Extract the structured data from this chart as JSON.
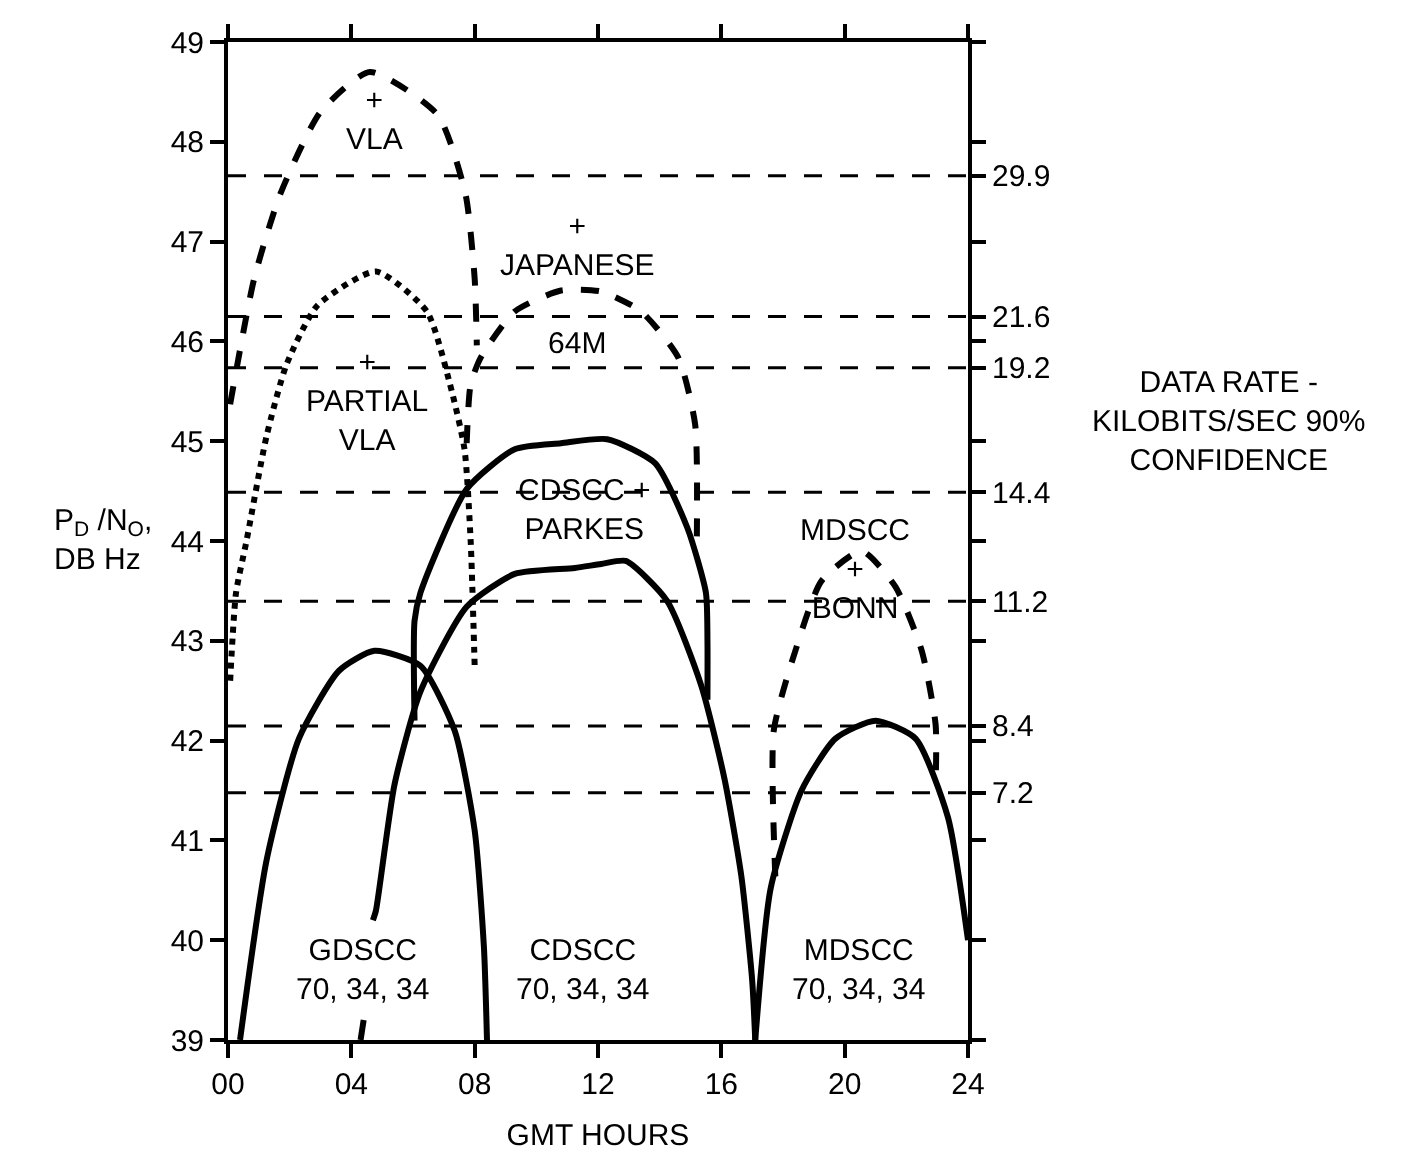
{
  "chart_data": {
    "type": "line",
    "xlabel": "GMT HOURS",
    "ylabel": "P$_{D}$ /N$_{O}$,\nDB Hz",
    "xlim": [
      0,
      24
    ],
    "xticks": [
      {
        "value": 0,
        "label": "00"
      },
      {
        "value": 4,
        "label": "04"
      },
      {
        "value": 8,
        "label": "08"
      },
      12,
      16,
      20,
      24
    ],
    "ylim": [
      39,
      49
    ],
    "yticks": [
      39,
      40,
      41,
      42,
      43,
      44,
      45,
      46,
      47,
      48,
      49
    ],
    "log": "y2",
    "y2lim": [
      4.07,
      40.7
    ],
    "y2ticks": [
      29.9,
      21.6,
      19.2,
      14.4,
      11.2,
      8.4,
      7.2
    ],
    "marker": "none",
    "series": [
      {
        "color": "#000000",
        "line_style": "dashed",
        "x": [
          0.07,
          0.85,
          1.7,
          3.0,
          4.6,
          6.8,
          7.7,
          8.0,
          8.07
        ],
        "values": [
          45.37,
          46.63,
          47.48,
          48.3,
          48.7,
          48.27,
          47.48,
          46.63,
          45.96
        ]
      },
      {
        "color": "#000000",
        "line_style": "dotted",
        "x": [
          0.07,
          0.26,
          0.6,
          1.25,
          1.9,
          2.9,
          4.8,
          6.45,
          7.2,
          7.67,
          7.87,
          8.0
        ],
        "values": [
          42.6,
          43.48,
          44.0,
          45.05,
          45.77,
          46.36,
          46.7,
          46.3,
          45.57,
          44.92,
          44.0,
          42.75
        ]
      },
      {
        "color": "#000000",
        "line_style": "dashed",
        "x": [
          7.74,
          7.87,
          8.2,
          9.3,
          10.8,
          12.1,
          13.4,
          14.6,
          15.15,
          15.2
        ],
        "values": [
          44.98,
          45.57,
          45.84,
          46.3,
          46.51,
          46.5,
          46.3,
          45.84,
          45.17,
          43.87
        ]
      },
      {
        "color": "#000000",
        "line_style": "solid",
        "x": [
          6.05,
          6.05,
          6.24,
          7.74,
          9.3,
          10.8,
          12.3,
          13.85,
          14.9,
          15.5,
          15.55,
          15.55
        ],
        "values": [
          42.2,
          43.2,
          43.48,
          44.52,
          44.92,
          44.98,
          45.02,
          44.78,
          44.13,
          43.48,
          43.0,
          42.41
        ]
      },
      {
        "color": "#000000",
        "line_style": "solid",
        "x": [
          4.3,
          4.4,
          null,
          4.7,
          4.8,
          5.4,
          6.24,
          7.74,
          9.3,
          11.25,
          12.1,
          12.9,
          14.24,
          15.35,
          16.1,
          16.65,
          17.0,
          17.1
        ],
        "values": [
          39.0,
          39.2,
          null,
          40.2,
          40.3,
          41.56,
          42.49,
          43.34,
          43.67,
          43.73,
          43.77,
          43.8,
          43.4,
          42.55,
          41.62,
          40.64,
          39.6,
          39.0
        ]
      },
      {
        "color": "#000000",
        "line_style": "solid",
        "x": [
          0.39,
          1.25,
          2.3,
          3.6,
          4.75,
          6.24,
          7.35,
          8.0,
          8.3,
          8.4
        ],
        "values": [
          39.0,
          40.8,
          42.02,
          42.7,
          42.9,
          42.75,
          42.1,
          41.1,
          39.93,
          39.0
        ]
      },
      {
        "color": "#000000",
        "line_style": "solid",
        "x": [
          17.1,
          17.6,
          18.6,
          19.7,
          21.0,
          22.3,
          23.35,
          24.0
        ],
        "values": [
          39.0,
          40.52,
          41.5,
          42.02,
          42.2,
          42.02,
          41.23,
          40.0
        ]
      },
      {
        "color": "#000000",
        "line_style": "dashed",
        "x": [
          17.75,
          17.7,
          18.4,
          19.25,
          20.55,
          21.65,
          22.5,
          22.95,
          22.95
        ],
        "values": [
          40.64,
          42.1,
          42.9,
          43.6,
          43.9,
          43.54,
          42.9,
          42.16,
          41.56
        ]
      }
    ],
    "ref_lines": [
      {
        "axis": "y2",
        "value": 29.9,
        "color": "#000000",
        "line_style": "dashed"
      },
      {
        "axis": "y2",
        "value": 21.6,
        "color": "#000000",
        "line_style": "dashed"
      },
      {
        "axis": "y2",
        "value": 19.2,
        "color": "#000000",
        "line_style": "dashed"
      },
      {
        "axis": "y2",
        "value": 14.4,
        "color": "#000000",
        "line_style": "dashed"
      },
      {
        "axis": "y2",
        "value": 11.2,
        "color": "#000000",
        "line_style": "dashed"
      },
      {
        "axis": "y2",
        "value": 8.4,
        "color": "#000000",
        "line_style": "dashed"
      },
      {
        "axis": "y2",
        "value": 7.2,
        "color": "#000000",
        "line_style": "dashed"
      }
    ],
    "annotations": [
      "+\nVLA",
      "+\nJAPANESE\n64M",
      "+\nPARTIAL\nVLA",
      "CDSCC +\nPARKES",
      "MDSCC\n+\nBONN",
      "GDSCC\n70, 34, 34",
      "CDSCC\n70, 34, 34",
      "MDSCC\n70, 34, 34",
      "DATA RATE -\nKILOBITS/SEC 90%\nCONFIDENCE"
    ]
  }
}
